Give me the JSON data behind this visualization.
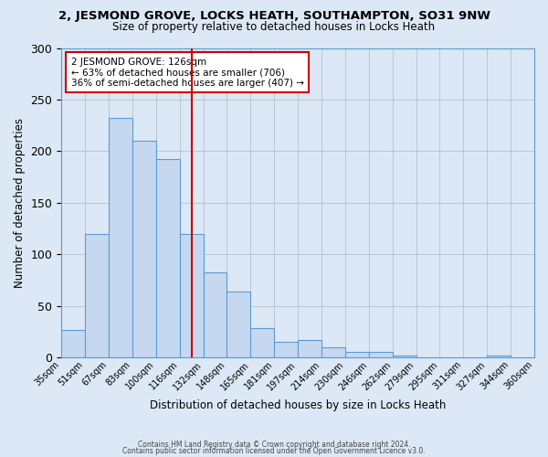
{
  "title": "2, JESMOND GROVE, LOCKS HEATH, SOUTHAMPTON, SO31 9NW",
  "subtitle": "Size of property relative to detached houses in Locks Heath",
  "xlabel": "Distribution of detached houses by size in Locks Heath",
  "ylabel": "Number of detached properties",
  "bin_labels": [
    "35sqm",
    "51sqm",
    "67sqm",
    "83sqm",
    "100sqm",
    "116sqm",
    "132sqm",
    "148sqm",
    "165sqm",
    "181sqm",
    "197sqm",
    "214sqm",
    "230sqm",
    "246sqm",
    "262sqm",
    "279sqm",
    "295sqm",
    "311sqm",
    "327sqm",
    "344sqm",
    "360sqm"
  ],
  "bar_heights": [
    27,
    120,
    232,
    210,
    192,
    120,
    82,
    64,
    28,
    15,
    17,
    10,
    5,
    5,
    2,
    0,
    0,
    0,
    2,
    0
  ],
  "bar_color": "#c5d8f0",
  "bar_edge_color": "#5b9bd5",
  "background_color": "#dce8f5",
  "red_line_x": 5.5,
  "red_line_color": "#cc0000",
  "annotation_title": "2 JESMOND GROVE: 126sqm",
  "annotation_line1": "← 63% of detached houses are smaller (706)",
  "annotation_line2": "36% of semi-detached houses are larger (407) →",
  "annotation_box_facecolor": "#ffffff",
  "annotation_box_edgecolor": "#cc0000",
  "ylim_max": 300,
  "yticks": [
    0,
    50,
    100,
    150,
    200,
    250,
    300
  ],
  "footer1": "Contains HM Land Registry data © Crown copyright and database right 2024.",
  "footer2": "Contains public sector information licensed under the Open Government Licence v3.0."
}
